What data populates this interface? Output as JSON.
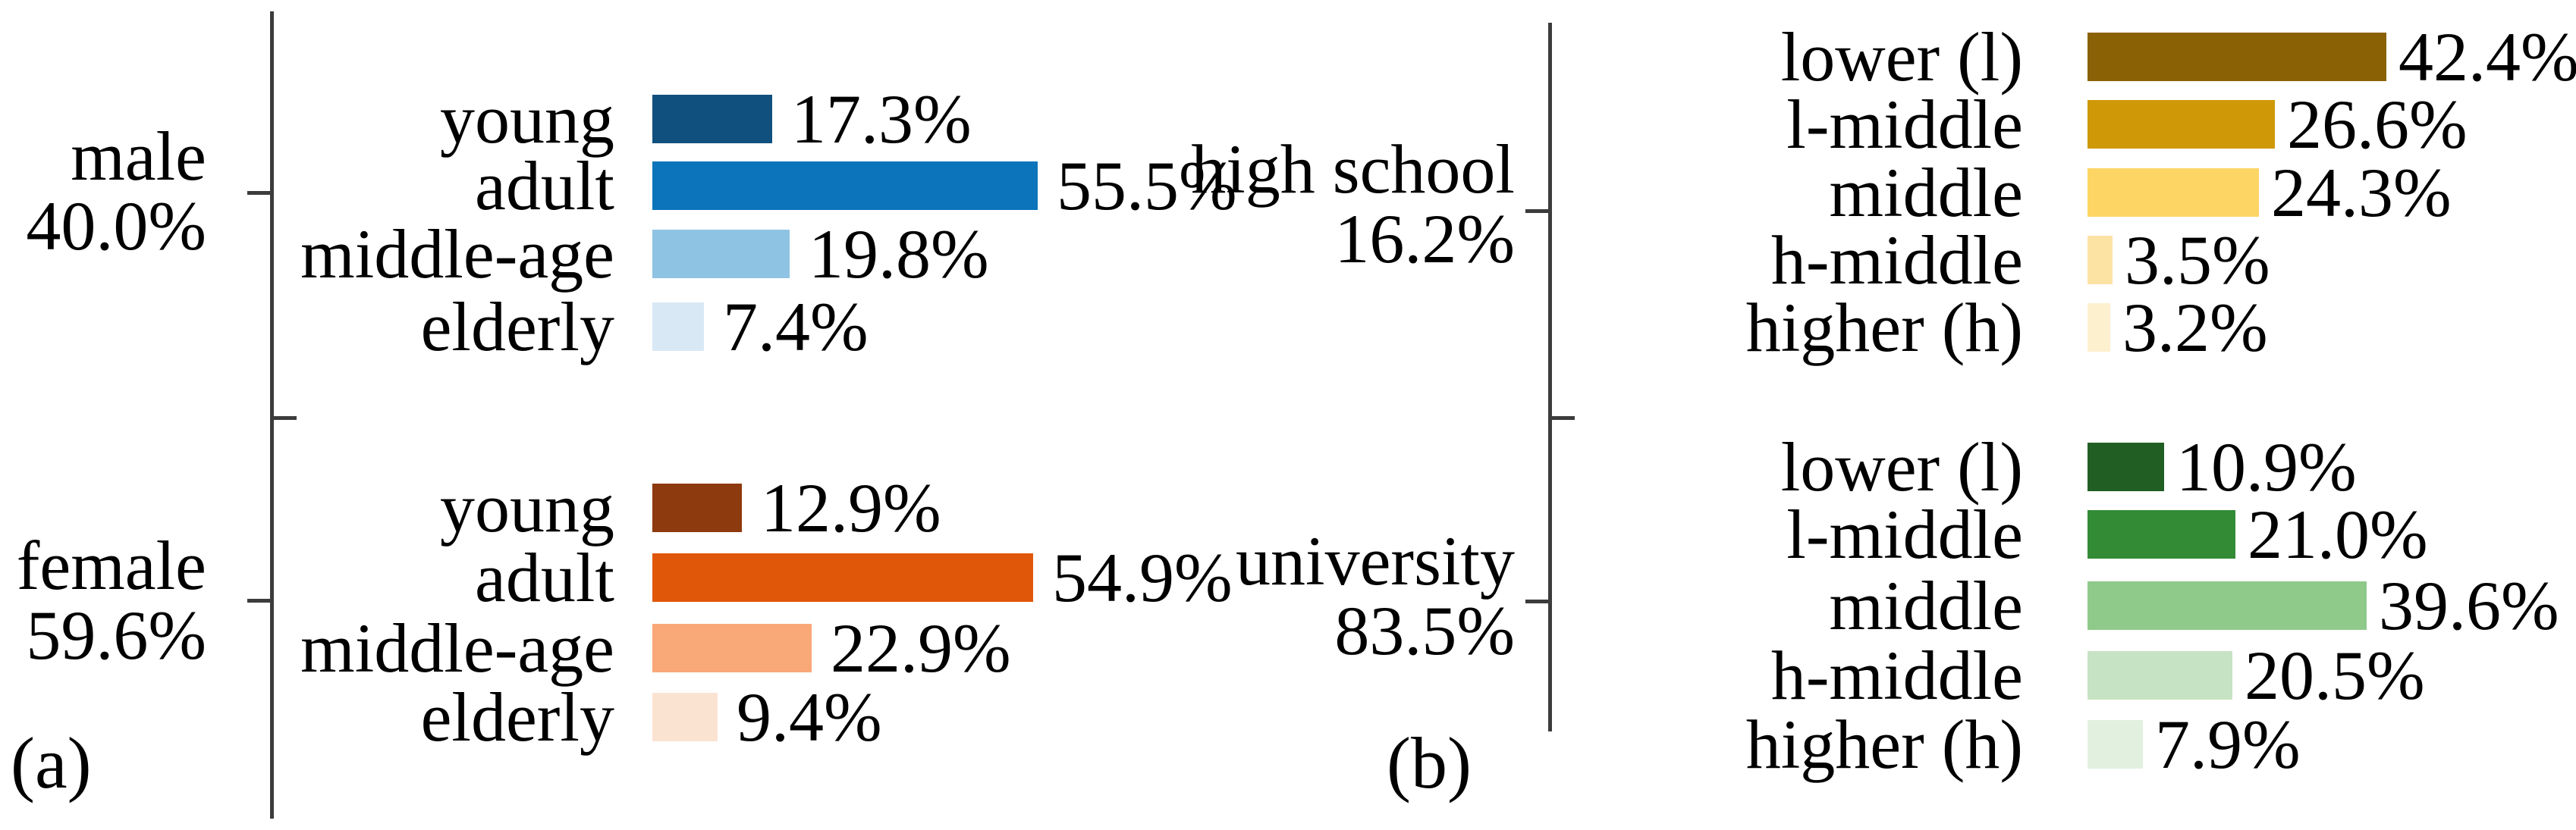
{
  "style": {
    "background": "#ffffff",
    "text_color": "#000000",
    "axis_color": "#3c3c3c"
  },
  "chart_data": [
    {
      "type": "bar",
      "orientation": "horizontal",
      "panel_caption": "(a)",
      "unit": "%",
      "groups": [
        {
          "label": "male",
          "share_label": "40.0%",
          "share_value": 40.0,
          "categories": [
            "young",
            "adult",
            "middle-age",
            "elderly"
          ],
          "values": [
            17.3,
            55.5,
            19.8,
            7.4
          ],
          "value_labels": [
            "17.3%",
            "55.5%",
            "19.8%",
            "7.4%"
          ],
          "colors": [
            "#10507e",
            "#0b74ba",
            "#8fc3e4",
            "#d9e8f5"
          ]
        },
        {
          "label": "female",
          "share_label": "59.6%",
          "share_value": 59.6,
          "categories": [
            "young",
            "adult",
            "middle-age",
            "elderly"
          ],
          "values": [
            12.9,
            54.9,
            22.9,
            9.4
          ],
          "value_labels": [
            "12.9%",
            "54.9%",
            "22.9%",
            "9.4%"
          ],
          "colors": [
            "#8d3a0e",
            "#e1570a",
            "#f9a877",
            "#fbe3d2"
          ]
        }
      ]
    },
    {
      "type": "bar",
      "orientation": "horizontal",
      "panel_caption": "(b)",
      "unit": "%",
      "groups": [
        {
          "label": "high school",
          "share_label": "16.2%",
          "share_value": 16.2,
          "categories": [
            "lower (l)",
            "l-middle",
            "middle",
            "h-middle",
            "higher (h)"
          ],
          "values": [
            42.4,
            26.6,
            24.3,
            3.5,
            3.2
          ],
          "value_labels": [
            "42.4%",
            "26.6%",
            "24.3%",
            "3.5%",
            "3.2%"
          ],
          "colors": [
            "#8a6205",
            "#cf9806",
            "#fdd565",
            "#fde3a3",
            "#fdf0ce"
          ]
        },
        {
          "label": "university",
          "share_label": "83.5%",
          "share_value": 83.5,
          "categories": [
            "lower (l)",
            "l-middle",
            "middle",
            "h-middle",
            "higher (h)"
          ],
          "values": [
            10.9,
            21.0,
            39.6,
            20.5,
            7.9
          ],
          "value_labels": [
            "10.9%",
            "21.0%",
            "39.6%",
            "20.5%",
            "7.9%"
          ],
          "colors": [
            "#205e24",
            "#338b36",
            "#8fca8b",
            "#c6e3c3",
            "#e2f1df"
          ]
        }
      ]
    }
  ]
}
